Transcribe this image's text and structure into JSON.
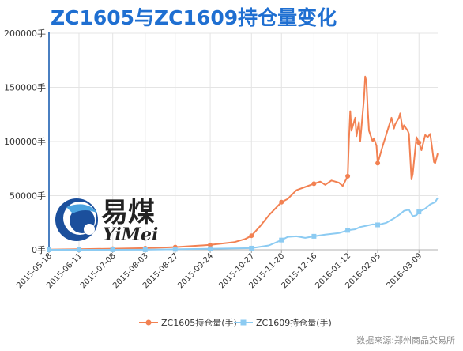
{
  "title": "ZC1605与ZC1609持仓量变化",
  "logo": {
    "cn": "易煤",
    "en": "YiMei"
  },
  "source": "数据来源:郑州商品交易所",
  "colors": {
    "title": "#1f6fd1",
    "zc1605": "#f28152",
    "zc1609": "#8ccbf2",
    "axis": "#4a7fc1",
    "grid": "#e4e4e4"
  },
  "chart_data": {
    "type": "line",
    "title": "ZC1605与ZC1609持仓量变化",
    "ylim": [
      0,
      200000
    ],
    "ytick_labels": [
      "0手",
      "50000手",
      "100000手",
      "150000手",
      "200000手"
    ],
    "yticks": [
      0,
      50000,
      100000,
      150000,
      200000
    ],
    "xtick_labels": [
      "2015-05-18",
      "2015-06-11",
      "2015-07-08",
      "2015-08-03",
      "2015-08-27",
      "2015-09-24",
      "2015-10-27",
      "2015-11-20",
      "2015-12-16",
      "2016-01-12",
      "2016-02-05",
      "2016-03-09"
    ],
    "xlim": [
      "2015-05-18",
      "2016-03-24"
    ],
    "grid": true,
    "legend_position": "bottom",
    "series": [
      {
        "name": "ZC1605持仓量(手)",
        "color": "#f28152",
        "points": [
          [
            "2015-05-18",
            200
          ],
          [
            "2015-06-11",
            600
          ],
          [
            "2015-07-08",
            1000
          ],
          [
            "2015-08-03",
            1500
          ],
          [
            "2015-08-27",
            2500
          ],
          [
            "2015-09-24",
            4500
          ],
          [
            "2015-10-13",
            7000
          ],
          [
            "2015-10-22",
            10000
          ],
          [
            "2015-10-27",
            13000
          ],
          [
            "2015-11-03",
            22000
          ],
          [
            "2015-11-10",
            32000
          ],
          [
            "2015-11-20",
            44000
          ],
          [
            "2015-11-25",
            47000
          ],
          [
            "2015-12-02",
            55000
          ],
          [
            "2015-12-09",
            58000
          ],
          [
            "2015-12-16",
            61000
          ],
          [
            "2015-12-21",
            63000
          ],
          [
            "2015-12-25",
            60000
          ],
          [
            "2015-12-30",
            64000
          ],
          [
            "2016-01-05",
            62000
          ],
          [
            "2016-01-08",
            59000
          ],
          [
            "2016-01-12",
            68000
          ],
          [
            "2016-01-13",
            102000
          ],
          [
            "2016-01-14",
            128000
          ],
          [
            "2016-01-15",
            110000
          ],
          [
            "2016-01-18",
            122000
          ],
          [
            "2016-01-19",
            105000
          ],
          [
            "2016-01-21",
            118000
          ],
          [
            "2016-01-22",
            100000
          ],
          [
            "2016-01-25",
            140000
          ],
          [
            "2016-01-26",
            160000
          ],
          [
            "2016-01-27",
            155000
          ],
          [
            "2016-01-28",
            130000
          ],
          [
            "2016-01-29",
            110000
          ],
          [
            "2016-02-01",
            100000
          ],
          [
            "2016-02-02",
            103000
          ],
          [
            "2016-02-04",
            96000
          ],
          [
            "2016-02-05",
            80000
          ],
          [
            "2016-02-09",
            96000
          ],
          [
            "2016-02-12",
            107000
          ],
          [
            "2016-02-16",
            122000
          ],
          [
            "2016-02-18",
            112000
          ],
          [
            "2016-02-19",
            116000
          ],
          [
            "2016-02-22",
            122000
          ],
          [
            "2016-02-23",
            126000
          ],
          [
            "2016-02-25",
            111000
          ],
          [
            "2016-02-26",
            115000
          ],
          [
            "2016-02-29",
            110000
          ],
          [
            "2016-03-01",
            107000
          ],
          [
            "2016-03-03",
            65000
          ],
          [
            "2016-03-04",
            70000
          ],
          [
            "2016-03-07",
            104000
          ],
          [
            "2016-03-09",
            99000
          ],
          [
            "2016-03-11",
            92000
          ],
          [
            "2016-03-14",
            106000
          ],
          [
            "2016-03-16",
            104000
          ],
          [
            "2016-03-18",
            107000
          ],
          [
            "2016-03-21",
            81000
          ],
          [
            "2016-03-22",
            80000
          ],
          [
            "2016-03-24",
            89000
          ]
        ]
      },
      {
        "name": "ZC1609持仓量(手)",
        "color": "#8ccbf2",
        "points": [
          [
            "2015-05-18",
            0
          ],
          [
            "2015-08-03",
            100
          ],
          [
            "2015-10-27",
            1500
          ],
          [
            "2015-11-10",
            4000
          ],
          [
            "2015-11-20",
            9000
          ],
          [
            "2015-11-25",
            12000
          ],
          [
            "2015-12-02",
            12500
          ],
          [
            "2015-12-09",
            11000
          ],
          [
            "2015-12-16",
            12500
          ],
          [
            "2015-12-25",
            14000
          ],
          [
            "2016-01-05",
            15500
          ],
          [
            "2016-01-12",
            18000
          ],
          [
            "2016-01-18",
            19000
          ],
          [
            "2016-01-22",
            21000
          ],
          [
            "2016-01-26",
            22000
          ],
          [
            "2016-02-01",
            23500
          ],
          [
            "2016-02-05",
            23000
          ],
          [
            "2016-02-12",
            25000
          ],
          [
            "2016-02-18",
            29000
          ],
          [
            "2016-02-23",
            33000
          ],
          [
            "2016-02-26",
            36000
          ],
          [
            "2016-03-01",
            37000
          ],
          [
            "2016-03-04",
            31000
          ],
          [
            "2016-03-07",
            32000
          ],
          [
            "2016-03-09",
            35000
          ],
          [
            "2016-03-14",
            38000
          ],
          [
            "2016-03-18",
            42000
          ],
          [
            "2016-03-22",
            44000
          ],
          [
            "2016-03-24",
            48000
          ]
        ]
      }
    ]
  }
}
